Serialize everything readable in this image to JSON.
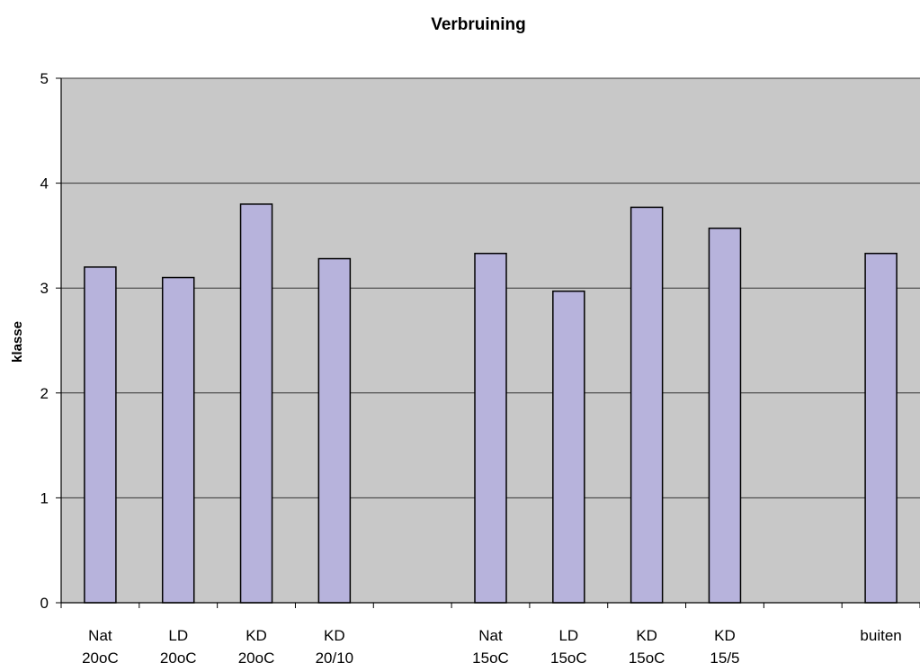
{
  "chart_data": {
    "type": "bar",
    "title": "Verbruining",
    "xlabel": "",
    "ylabel": "klasse",
    "ylim": [
      0,
      5
    ],
    "yticks": [
      "0",
      "1",
      "2",
      "3",
      "4",
      "5"
    ],
    "grid": true,
    "legend": "none",
    "bar_color": "#b7b3dc",
    "plot_background": "#c8c8c8",
    "categories": [
      {
        "line1": "Nat",
        "line2": "20oC"
      },
      {
        "line1": "LD",
        "line2": "20oC"
      },
      {
        "line1": "KD",
        "line2": "20oC"
      },
      {
        "line1": "KD",
        "line2": "20/10"
      },
      {
        "line1": "",
        "line2": ""
      },
      {
        "line1": "Nat",
        "line2": "15oC"
      },
      {
        "line1": "LD",
        "line2": "15oC"
      },
      {
        "line1": "KD",
        "line2": "15oC"
      },
      {
        "line1": "KD",
        "line2": "15/5"
      },
      {
        "line1": "",
        "line2": ""
      },
      {
        "line1": "buiten",
        "line2": ""
      }
    ],
    "values": [
      3.2,
      3.1,
      3.8,
      3.28,
      null,
      3.33,
      2.97,
      3.77,
      3.57,
      null,
      3.33
    ]
  }
}
